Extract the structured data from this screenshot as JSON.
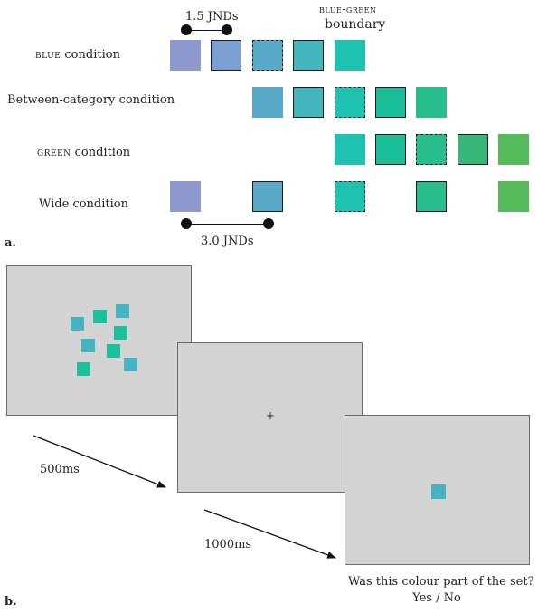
{
  "panel_a": {
    "label": "a.",
    "top_jnd_label": "1.5 JNDs",
    "bottom_jnd_label": "3.0 JNDs",
    "boundary_line1": "blue-green",
    "boundary_line2": "boundary",
    "rows": [
      {
        "label_small_caps": "blue",
        "label_rest": " condition"
      },
      {
        "label_small_caps": "",
        "label_rest": "Between-category condition"
      },
      {
        "label_small_caps": "green",
        "label_rest": " condition"
      },
      {
        "label_small_caps": "",
        "label_rest": "Wide condition"
      }
    ],
    "colors": {
      "c0": "#8e9acf",
      "c1": "#7b9fd1",
      "c2": "#59a9c8",
      "c3": "#42b5bd",
      "c4": "#1fc1b1",
      "c5": "#1bbf9a",
      "c6": "#28bd8c",
      "c7": "#37b879",
      "c8": "#55ba5a"
    }
  },
  "panel_b": {
    "label": "b.",
    "time1": "500ms",
    "time2": "1000ms",
    "fixation": "+",
    "question": "Was this colour part of the set?",
    "answer": "Yes / No",
    "screen_color": "#d3d4d3",
    "stim_blue": "#45b3c2",
    "stim_green": "#1ebf9c"
  }
}
